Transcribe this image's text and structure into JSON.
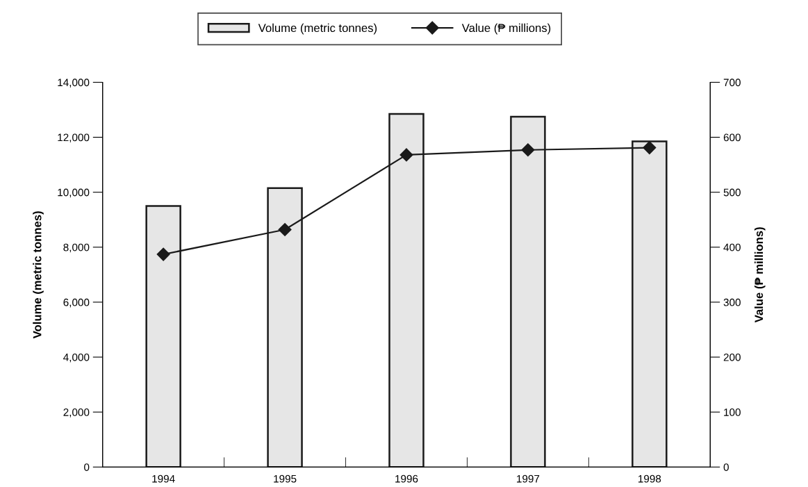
{
  "chart_data": {
    "type": "bar",
    "categories": [
      "1994",
      "1995",
      "1996",
      "1997",
      "1998"
    ],
    "series": [
      {
        "name": "Volume (metric tonnes)",
        "color": "#e6e6e6",
        "values": [
          9500,
          10150,
          12850,
          12750,
          11850
        ]
      },
      {
        "name": "Value (₱ millions)",
        "type": "line",
        "axis": "y2",
        "color": "#1a1a1a",
        "values": [
          387,
          432,
          568,
          577,
          581
        ]
      }
    ],
    "ylabel": "Volume (metric tonnes)",
    "y2label": "Value (₱ millions)",
    "ylim": [
      0,
      14000
    ],
    "yticks": [
      {
        "value": 0,
        "label": "0"
      },
      {
        "value": 2000,
        "label": "2,000"
      },
      {
        "value": 4000,
        "label": "4,000"
      },
      {
        "value": 6000,
        "label": "6,000"
      },
      {
        "value": 8000,
        "label": "8,000"
      },
      {
        "value": 10000,
        "label": "10,000"
      },
      {
        "value": 12000,
        "label": "12,000"
      },
      {
        "value": 14000,
        "label": "14,000"
      }
    ],
    "y2lim": [
      0,
      700
    ],
    "y2ticks": [
      0,
      100,
      200,
      300,
      400,
      500,
      600,
      700
    ],
    "marker": "diamond",
    "legend": "top",
    "grid": false
  }
}
